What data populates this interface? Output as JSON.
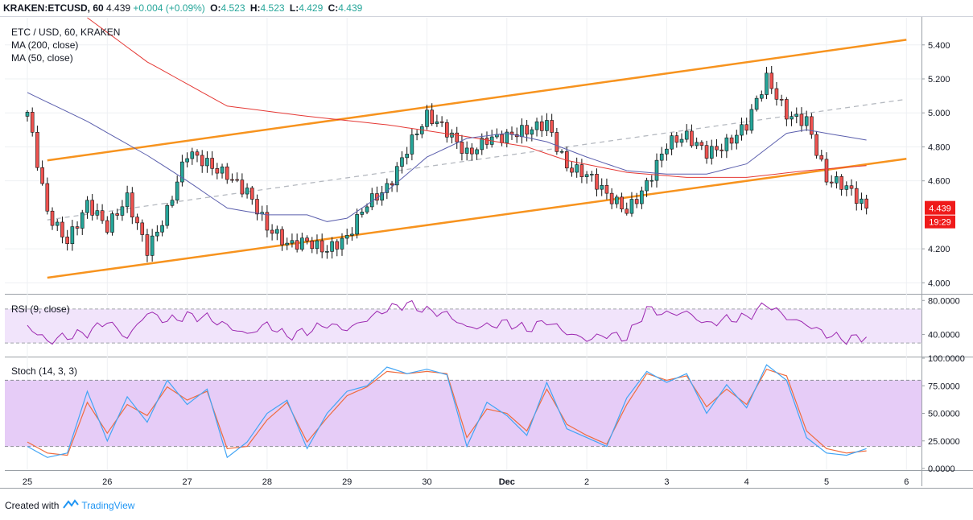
{
  "header": {
    "symbol": "KRAKEN:ETCUSD, 60",
    "last": "4.439",
    "change": "+0.004 (+0.09%)",
    "o_label": "O:",
    "o_value": "4.523",
    "h_label": "H:",
    "h_value": "4.523",
    "l_label": "L:",
    "l_value": "4.429",
    "c_label": "C:",
    "c_value": "4.439"
  },
  "panes": {
    "price": {
      "title": "ETC / USD, 60, KRAKEN",
      "ma200": "MA (200, close)",
      "ma50": "MA (50, close)"
    },
    "rsi": {
      "title": "RSI (9, close)"
    },
    "stoch": {
      "title": "Stoch (14, 3, 3)"
    }
  },
  "price_tag": {
    "value": "4.439",
    "countdown": "19:29"
  },
  "footer": {
    "created_with": "Created with",
    "brand": "TradingView"
  },
  "colors": {
    "up": "#26a69a",
    "down": "#ef5350",
    "candle_border": "#111111",
    "channel": "#f7931e",
    "ma200": "#e53935",
    "ma50": "#5b5fad",
    "rsi": "#9c27b0",
    "rsi_band": "#f1e4fb",
    "stoch_k": "#42a5f5",
    "stoch_d": "#ef6c3f",
    "stoch_band": "#e6ccf7",
    "price_tag": "#ef1a1a"
  },
  "chart_data": [
    {
      "type": "candlestick",
      "title": "ETC / USD, 60, KRAKEN",
      "x_tick_labels": [
        "25",
        "26",
        "27",
        "28",
        "29",
        "30",
        "Dec",
        "2",
        "3",
        "4",
        "5",
        "6"
      ],
      "y_tick_labels": [
        "5.400",
        "5.200",
        "5.000",
        "4.800",
        "4.600",
        "4.200",
        "4.000"
      ],
      "ylim": [
        3.94,
        5.56
      ],
      "grid": true,
      "series": [
        {
          "name": "ETC / USD",
          "close_path": [
            [
              0.0,
              4.98
            ],
            [
              0.5,
              4.42
            ],
            [
              1.0,
              4.27
            ],
            [
              1.5,
              4.46
            ],
            [
              2.0,
              4.3
            ],
            [
              2.5,
              4.5
            ],
            [
              3.0,
              4.22
            ],
            [
              3.5,
              4.42
            ],
            [
              4.0,
              4.74
            ],
            [
              4.5,
              4.7
            ],
            [
              5.0,
              4.66
            ],
            [
              5.5,
              4.54
            ],
            [
              6.0,
              4.3
            ],
            [
              6.5,
              4.22
            ],
            [
              7.0,
              4.27
            ],
            [
              7.5,
              4.2
            ],
            [
              8.0,
              4.24
            ],
            [
              8.5,
              4.46
            ],
            [
              9.0,
              4.58
            ],
            [
              9.5,
              4.8
            ],
            [
              10.0,
              4.96
            ],
            [
              10.5,
              4.88
            ],
            [
              11.0,
              4.78
            ],
            [
              11.5,
              4.86
            ],
            [
              12.0,
              4.84
            ],
            [
              12.5,
              4.88
            ],
            [
              13.0,
              4.96
            ],
            [
              13.5,
              4.7
            ],
            [
              14.0,
              4.62
            ],
            [
              14.5,
              4.5
            ],
            [
              15.0,
              4.44
            ],
            [
              15.5,
              4.6
            ],
            [
              16.0,
              4.8
            ],
            [
              16.5,
              4.84
            ],
            [
              17.0,
              4.78
            ],
            [
              17.5,
              4.84
            ],
            [
              18.0,
              4.92
            ],
            [
              18.5,
              5.18
            ],
            [
              19.0,
              5.0
            ],
            [
              19.5,
              4.98
            ],
            [
              20.0,
              4.6
            ],
            [
              20.5,
              4.54
            ],
            [
              21.0,
              4.439
            ]
          ]
        },
        {
          "name": "MA (200, close)",
          "path": [
            [
              1.5,
              5.56
            ],
            [
              3.0,
              5.3
            ],
            [
              5.0,
              5.04
            ],
            [
              7.0,
              4.98
            ],
            [
              9.0,
              4.93
            ],
            [
              11.0,
              4.86
            ],
            [
              12.5,
              4.8
            ],
            [
              13.5,
              4.72
            ],
            [
              15.0,
              4.65
            ],
            [
              16.5,
              4.62
            ],
            [
              18.0,
              4.62
            ],
            [
              19.5,
              4.66
            ],
            [
              21.0,
              4.69
            ]
          ]
        },
        {
          "name": "MA (50, close)",
          "path": [
            [
              0.0,
              5.12
            ],
            [
              1.5,
              4.95
            ],
            [
              3.0,
              4.75
            ],
            [
              4.0,
              4.6
            ],
            [
              5.0,
              4.44
            ],
            [
              6.0,
              4.4
            ],
            [
              7.0,
              4.4
            ],
            [
              7.5,
              4.36
            ],
            [
              8.0,
              4.38
            ],
            [
              9.0,
              4.54
            ],
            [
              10.0,
              4.74
            ],
            [
              11.0,
              4.85
            ],
            [
              12.0,
              4.88
            ],
            [
              13.0,
              4.83
            ],
            [
              14.0,
              4.74
            ],
            [
              15.0,
              4.66
            ],
            [
              16.0,
              4.64
            ],
            [
              17.0,
              4.64
            ],
            [
              18.0,
              4.7
            ],
            [
              19.0,
              4.88
            ],
            [
              19.5,
              4.9
            ],
            [
              20.0,
              4.88
            ],
            [
              21.0,
              4.84
            ]
          ]
        },
        {
          "name": "channel upper",
          "path": [
            [
              0.5,
              4.72
            ],
            [
              22.0,
              5.43
            ]
          ]
        },
        {
          "name": "channel lower",
          "path": [
            [
              0.5,
              4.03
            ],
            [
              22.0,
              4.73
            ]
          ]
        },
        {
          "name": "channel mid",
          "path": [
            [
              0.5,
              4.37
            ],
            [
              22.0,
              5.08
            ]
          ]
        }
      ]
    },
    {
      "type": "line",
      "title": "RSI (9, close)",
      "y_tick_labels": [
        "80.0000",
        "40.0000"
      ],
      "ylim": [
        15,
        85
      ],
      "band": [
        30,
        70
      ],
      "series": [
        {
          "name": "RSI (9, close)",
          "path": [
            [
              0.0,
              50
            ],
            [
              0.5,
              32
            ],
            [
              1.0,
              38
            ],
            [
              1.5,
              42
            ],
            [
              2.0,
              56
            ],
            [
              2.5,
              36
            ],
            [
              3.0,
              66
            ],
            [
              3.5,
              56
            ],
            [
              4.0,
              62
            ],
            [
              4.5,
              60
            ],
            [
              5.0,
              50
            ],
            [
              5.5,
              40
            ],
            [
              6.0,
              52
            ],
            [
              6.5,
              38
            ],
            [
              7.0,
              44
            ],
            [
              7.5,
              52
            ],
            [
              8.0,
              46
            ],
            [
              8.5,
              58
            ],
            [
              9.0,
              70
            ],
            [
              9.5,
              76
            ],
            [
              10.0,
              68
            ],
            [
              10.5,
              64
            ],
            [
              11.0,
              48
            ],
            [
              11.5,
              50
            ],
            [
              12.0,
              54
            ],
            [
              12.5,
              46
            ],
            [
              13.0,
              56
            ],
            [
              13.5,
              42
            ],
            [
              14.0,
              34
            ],
            [
              14.5,
              40
            ],
            [
              15.0,
              36
            ],
            [
              15.5,
              70
            ],
            [
              16.0,
              64
            ],
            [
              16.5,
              66
            ],
            [
              17.0,
              52
            ],
            [
              17.5,
              58
            ],
            [
              18.0,
              60
            ],
            [
              18.5,
              76
            ],
            [
              19.0,
              60
            ],
            [
              19.5,
              52
            ],
            [
              20.0,
              40
            ],
            [
              20.5,
              34
            ],
            [
              21.0,
              38
            ]
          ]
        }
      ]
    },
    {
      "type": "line",
      "title": "Stoch (14, 3, 3)",
      "y_tick_labels": [
        "100.0000",
        "75.0000",
        "50.0000",
        "25.0000",
        "0.0000"
      ],
      "ylim": [
        0,
        100
      ],
      "band": [
        20,
        80
      ],
      "series": [
        {
          "name": "%K",
          "path": [
            [
              0.0,
              20
            ],
            [
              0.5,
              10
            ],
            [
              1.0,
              14
            ],
            [
              1.5,
              70
            ],
            [
              2.0,
              25
            ],
            [
              2.5,
              65
            ],
            [
              3.0,
              42
            ],
            [
              3.5,
              80
            ],
            [
              4.0,
              58
            ],
            [
              4.5,
              72
            ],
            [
              5.0,
              10
            ],
            [
              5.5,
              24
            ],
            [
              6.0,
              50
            ],
            [
              6.5,
              62
            ],
            [
              7.0,
              18
            ],
            [
              7.5,
              50
            ],
            [
              8.0,
              70
            ],
            [
              8.5,
              75
            ],
            [
              9.0,
              92
            ],
            [
              9.5,
              86
            ],
            [
              10.0,
              90
            ],
            [
              10.5,
              85
            ],
            [
              11.0,
              20
            ],
            [
              11.5,
              60
            ],
            [
              12.0,
              48
            ],
            [
              12.5,
              30
            ],
            [
              13.0,
              78
            ],
            [
              13.5,
              36
            ],
            [
              14.0,
              28
            ],
            [
              14.5,
              20
            ],
            [
              15.0,
              64
            ],
            [
              15.5,
              88
            ],
            [
              16.0,
              78
            ],
            [
              16.5,
              86
            ],
            [
              17.0,
              50
            ],
            [
              17.5,
              76
            ],
            [
              18.0,
              55
            ],
            [
              18.5,
              94
            ],
            [
              19.0,
              80
            ],
            [
              19.5,
              28
            ],
            [
              20.0,
              14
            ],
            [
              20.5,
              12
            ],
            [
              21.0,
              18
            ]
          ]
        },
        {
          "name": "%D",
          "path": [
            [
              0.0,
              24
            ],
            [
              0.5,
              14
            ],
            [
              1.0,
              12
            ],
            [
              1.5,
              60
            ],
            [
              2.0,
              32
            ],
            [
              2.5,
              58
            ],
            [
              3.0,
              48
            ],
            [
              3.5,
              74
            ],
            [
              4.0,
              62
            ],
            [
              4.5,
              70
            ],
            [
              5.0,
              18
            ],
            [
              5.5,
              20
            ],
            [
              6.0,
              44
            ],
            [
              6.5,
              60
            ],
            [
              7.0,
              24
            ],
            [
              7.5,
              46
            ],
            [
              8.0,
              66
            ],
            [
              8.5,
              74
            ],
            [
              9.0,
              88
            ],
            [
              9.5,
              86
            ],
            [
              10.0,
              88
            ],
            [
              10.5,
              86
            ],
            [
              11.0,
              28
            ],
            [
              11.5,
              54
            ],
            [
              12.0,
              50
            ],
            [
              12.5,
              34
            ],
            [
              13.0,
              72
            ],
            [
              13.5,
              40
            ],
            [
              14.0,
              30
            ],
            [
              14.5,
              22
            ],
            [
              15.0,
              58
            ],
            [
              15.5,
              86
            ],
            [
              16.0,
              80
            ],
            [
              16.5,
              84
            ],
            [
              17.0,
              56
            ],
            [
              17.5,
              72
            ],
            [
              18.0,
              58
            ],
            [
              18.5,
              90
            ],
            [
              19.0,
              84
            ],
            [
              19.5,
              34
            ],
            [
              20.0,
              18
            ],
            [
              20.5,
              14
            ],
            [
              21.0,
              16
            ]
          ]
        }
      ]
    }
  ]
}
